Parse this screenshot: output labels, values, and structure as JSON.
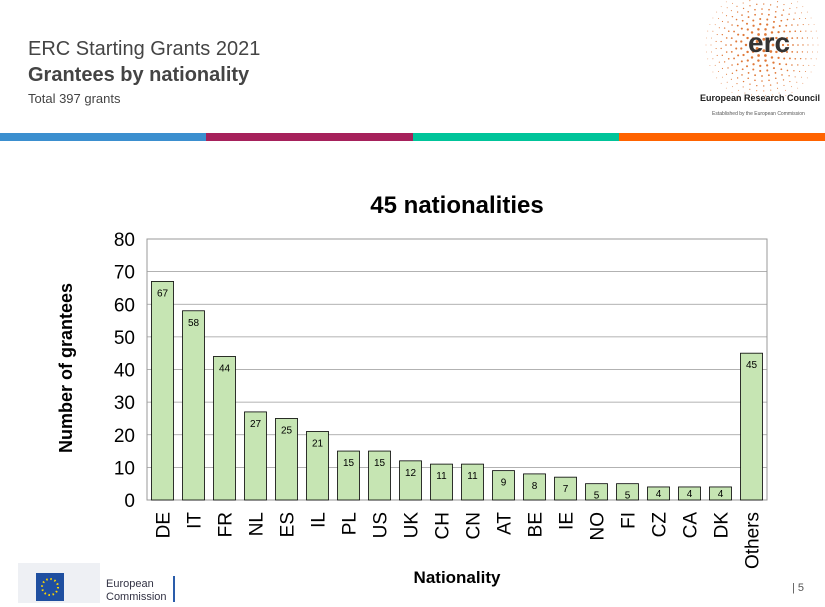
{
  "header": {
    "title": "ERC Starting Grants 2021",
    "subtitle": "Grantees by nationality",
    "total": "Total 397 grants"
  },
  "brand": {
    "logo_text": "erc",
    "name": "European Research Council",
    "tagline": "Established by the European Commission",
    "ec_line1": "European",
    "ec_line2": "Commission",
    "band_colors": [
      "#3b8fcf",
      "#a6215b",
      "#00c49a",
      "#ff6300"
    ]
  },
  "page_number": "5",
  "chart_data": {
    "type": "bar",
    "title": "45 nationalities",
    "xlabel": "Nationality",
    "ylabel": "Number of grantees",
    "ylim": [
      0,
      80
    ],
    "yticks": [
      0,
      10,
      20,
      30,
      40,
      50,
      60,
      70,
      80
    ],
    "grid": true,
    "bar_color": "#c6e5b3",
    "categories": [
      "DE",
      "IT",
      "FR",
      "NL",
      "ES",
      "IL",
      "PL",
      "US",
      "UK",
      "CH",
      "CN",
      "AT",
      "BE",
      "IE",
      "NO",
      "FI",
      "CZ",
      "CA",
      "DK",
      "Others"
    ],
    "values": [
      67,
      58,
      44,
      27,
      25,
      21,
      15,
      15,
      12,
      11,
      11,
      9,
      8,
      7,
      5,
      5,
      4,
      4,
      4,
      45
    ]
  }
}
